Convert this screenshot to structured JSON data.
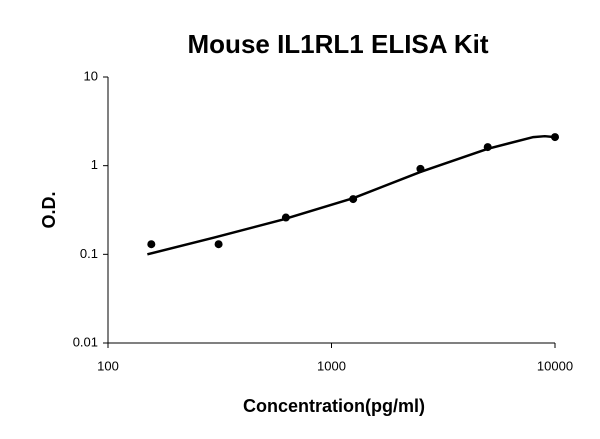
{
  "chart_data": {
    "type": "scatter",
    "title": "Mouse IL1RL1 ELISA Kit",
    "x_label": "Concentration(pg/ml)",
    "y_label": "O.D.",
    "x_scale": "log",
    "y_scale": "log",
    "grid": false,
    "xlim": [
      100,
      10000
    ],
    "xticks": [
      100,
      1000,
      10000
    ],
    "ylim": [
      0.01,
      10
    ],
    "yticks": [
      0.01,
      0.1,
      1,
      10
    ],
    "series": [
      {
        "type": "scatter",
        "color": "#000000",
        "x": [
          156.25,
          312.5,
          625,
          1250,
          2500,
          5000,
          10000
        ],
        "values": [
          0.13,
          0.13,
          0.26,
          0.42,
          0.92,
          1.62,
          2.1
        ]
      },
      {
        "type": "line",
        "color": "#000000",
        "x": [
          150,
          300,
          600,
          1250,
          2500,
          5000,
          8000,
          9000,
          10000
        ],
        "values": [
          0.1,
          0.155,
          0.245,
          0.43,
          0.85,
          1.55,
          2.1,
          2.15,
          2.1
        ]
      }
    ]
  }
}
